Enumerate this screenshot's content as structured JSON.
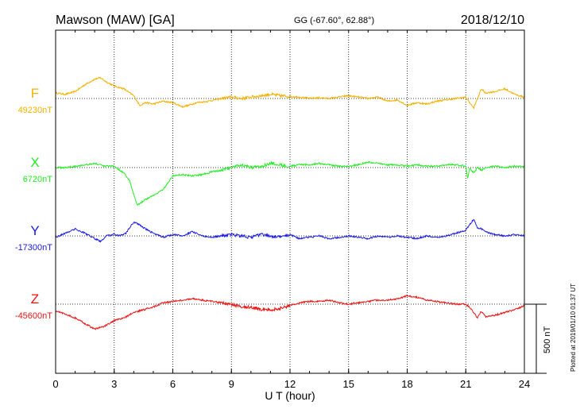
{
  "header": {
    "station": "Mawson (MAW)  [GA]",
    "coords": "GG (-67.60°,  62.88°)",
    "date": "2018/12/10"
  },
  "footer": {
    "plotted": "Plotted at 2019/01/10 01:37 UT"
  },
  "chart_data": {
    "type": "line",
    "xlabel": "U T (hour)",
    "xlim": [
      0,
      24
    ],
    "x_ticks": [
      0,
      3,
      6,
      9,
      12,
      15,
      18,
      21,
      24
    ],
    "scale_bar": "500 nT",
    "grid": true,
    "series": [
      {
        "name": "F",
        "baseline_label": "49230nT",
        "color": "#f5b000",
        "baseline": 49230,
        "x": [
          0,
          0.5,
          1,
          1.5,
          2,
          2.3,
          2.6,
          3,
          3.5,
          4,
          4.3,
          4.6,
          5,
          5.5,
          6,
          6.5,
          6.8,
          7.2,
          7.8,
          8.5,
          9,
          9.5,
          10,
          10.5,
          11,
          11.5,
          12,
          12.5,
          13,
          13.5,
          14,
          14.5,
          15,
          15.5,
          16,
          16.5,
          17,
          17.5,
          18,
          18.5,
          19,
          19.5,
          20,
          20.5,
          21,
          21.2,
          21.4,
          21.6,
          21.8,
          22,
          22.5,
          23,
          23.5,
          24
        ],
        "values": [
          49270,
          49260,
          49280,
          49330,
          49370,
          49380,
          49350,
          49320,
          49300,
          49250,
          49180,
          49200,
          49190,
          49210,
          49200,
          49170,
          49180,
          49200,
          49210,
          49230,
          49240,
          49230,
          49240,
          49250,
          49260,
          49250,
          49245,
          49240,
          49230,
          49235,
          49230,
          49240,
          49250,
          49240,
          49230,
          49240,
          49210,
          49220,
          49180,
          49200,
          49190,
          49210,
          49220,
          49230,
          49240,
          49200,
          49160,
          49230,
          49300,
          49270,
          49280,
          49300,
          49260,
          49240
        ]
      },
      {
        "name": "X",
        "baseline_label": "6720nT",
        "color": "#22ee22",
        "baseline": 6720,
        "x": [
          0,
          0.5,
          1,
          1.5,
          2,
          2.5,
          3,
          3.5,
          3.8,
          4,
          4.2,
          4.5,
          5,
          5.5,
          6,
          6.5,
          7,
          7.5,
          8,
          8.5,
          9,
          9.5,
          10,
          10.5,
          11,
          11.5,
          12,
          12.5,
          13,
          13.5,
          14,
          14.5,
          15,
          15.5,
          16,
          16.5,
          17,
          17.5,
          18,
          18.5,
          19,
          19.5,
          20,
          20.5,
          21,
          21.1,
          21.2,
          21.4,
          21.6,
          21.8,
          22,
          22.5,
          23,
          23.5,
          24
        ],
        "values": [
          6720,
          6720,
          6730,
          6740,
          6750,
          6730,
          6730,
          6680,
          6620,
          6520,
          6450,
          6480,
          6520,
          6560,
          6660,
          6670,
          6660,
          6670,
          6690,
          6700,
          6720,
          6740,
          6720,
          6730,
          6750,
          6740,
          6730,
          6740,
          6740,
          6750,
          6740,
          6730,
          6730,
          6740,
          6760,
          6750,
          6740,
          6740,
          6730,
          6740,
          6730,
          6730,
          6740,
          6740,
          6730,
          6640,
          6720,
          6680,
          6720,
          6700,
          6720,
          6730,
          6720,
          6730,
          6725
        ]
      },
      {
        "name": "Y",
        "baseline_label": "-17300nT",
        "color": "#1a1ae6",
        "baseline": -17300,
        "x": [
          0,
          0.5,
          1,
          1.5,
          2,
          2.3,
          2.6,
          3,
          3.3,
          3.6,
          4,
          4.3,
          4.6,
          5,
          5.5,
          6,
          6.5,
          7,
          7.5,
          8,
          8.5,
          9,
          9.5,
          10,
          10.5,
          11,
          11.5,
          12,
          12.5,
          13,
          13.5,
          14,
          14.5,
          15,
          15.5,
          16,
          16.5,
          17,
          17.5,
          18,
          18.5,
          19,
          19.5,
          20,
          20.5,
          21,
          21.2,
          21.4,
          21.6,
          21.8,
          22,
          22.5,
          23,
          23.5,
          24
        ],
        "values": [
          -17310,
          -17280,
          -17250,
          -17280,
          -17320,
          -17340,
          -17300,
          -17290,
          -17300,
          -17280,
          -17200,
          -17220,
          -17250,
          -17280,
          -17310,
          -17290,
          -17300,
          -17270,
          -17300,
          -17310,
          -17300,
          -17290,
          -17300,
          -17310,
          -17290,
          -17300,
          -17310,
          -17290,
          -17320,
          -17310,
          -17300,
          -17320,
          -17310,
          -17300,
          -17310,
          -17320,
          -17300,
          -17310,
          -17300,
          -17310,
          -17320,
          -17300,
          -17310,
          -17300,
          -17280,
          -17260,
          -17220,
          -17180,
          -17240,
          -17250,
          -17270,
          -17290,
          -17300,
          -17290,
          -17300
        ]
      },
      {
        "name": "Z",
        "baseline_label": "-45600nT",
        "color": "#ee1111",
        "baseline": -45600,
        "x": [
          0,
          0.5,
          1,
          1.5,
          2,
          2.5,
          3,
          3.5,
          4,
          4.5,
          5,
          5.5,
          6,
          6.5,
          7,
          7.5,
          8,
          8.5,
          9,
          9.5,
          10,
          10.5,
          11,
          11.5,
          12,
          12.5,
          13,
          13.5,
          14,
          14.5,
          15,
          15.5,
          16,
          16.5,
          17,
          17.5,
          18,
          18.5,
          19,
          19.5,
          20,
          20.5,
          21,
          21.2,
          21.4,
          21.6,
          21.8,
          22,
          22.5,
          23,
          23.5,
          24
        ],
        "values": [
          -45650,
          -45670,
          -45700,
          -45740,
          -45780,
          -45760,
          -45720,
          -45700,
          -45660,
          -45640,
          -45620,
          -45590,
          -45580,
          -45570,
          -45560,
          -45570,
          -45580,
          -45590,
          -45600,
          -45620,
          -45620,
          -45640,
          -45640,
          -45630,
          -45610,
          -45590,
          -45580,
          -45580,
          -45570,
          -45590,
          -45600,
          -45590,
          -45580,
          -45570,
          -45570,
          -45560,
          -45540,
          -45550,
          -45570,
          -45580,
          -45590,
          -45600,
          -45600,
          -45620,
          -45660,
          -45700,
          -45650,
          -45690,
          -45680,
          -45660,
          -45640,
          -45610
        ]
      }
    ]
  }
}
